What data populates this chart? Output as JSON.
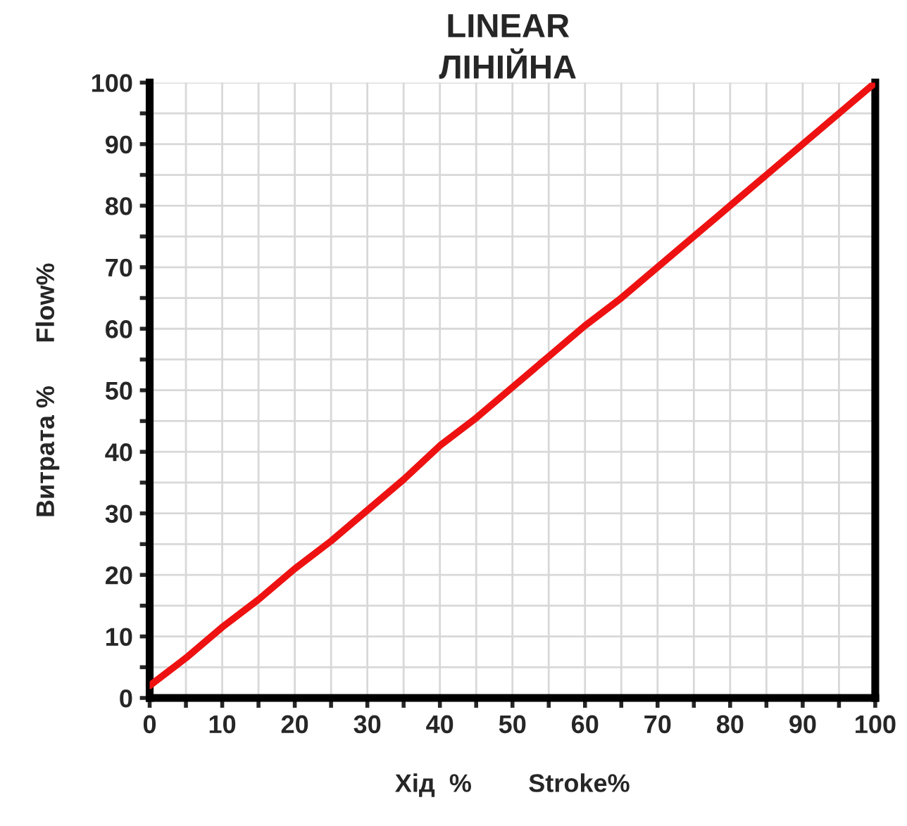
{
  "chart_data": {
    "type": "line",
    "title": "LINEAR",
    "subtitle": "ЛІНІЙНА",
    "xlabel": "Хід  %        Stroke%",
    "ylabel": "Витрата %      Flow%",
    "x": [
      0,
      5,
      10,
      15,
      20,
      25,
      30,
      35,
      40,
      45,
      50,
      55,
      60,
      65,
      70,
      75,
      80,
      85,
      90,
      95,
      100
    ],
    "series": [
      {
        "color": "#ee1111",
        "values": [
          2,
          6.5,
          11.5,
          16,
          21,
          25.5,
          30.5,
          35.5,
          41,
          45.5,
          50.5,
          55.5,
          60.5,
          65,
          70,
          75,
          80,
          85,
          90,
          95,
          100
        ]
      }
    ],
    "xlim": [
      0,
      100
    ],
    "ylim": [
      0,
      100
    ],
    "xticks": [
      0,
      {
        "value": 5,
        "label": null
      },
      10,
      {
        "value": 15,
        "label": null
      },
      20,
      {
        "value": 25,
        "label": null
      },
      30,
      {
        "value": 35,
        "label": null
      },
      40,
      {
        "value": 45,
        "label": null
      },
      50,
      {
        "value": 55,
        "label": null
      },
      60,
      {
        "value": 65,
        "label": null
      },
      70,
      {
        "value": 75,
        "label": null
      },
      80,
      {
        "value": 85,
        "label": null
      },
      90,
      {
        "value": 95,
        "label": null
      },
      100
    ],
    "yticks": [
      0,
      {
        "value": 5,
        "label": null
      },
      10,
      {
        "value": 15,
        "label": null
      },
      20,
      {
        "value": 25,
        "label": null
      },
      30,
      {
        "value": 35,
        "label": null
      },
      40,
      {
        "value": 45,
        "label": null
      },
      50,
      {
        "value": 55,
        "label": null
      },
      60,
      {
        "value": 65,
        "label": null
      },
      70,
      {
        "value": 75,
        "label": null
      },
      80,
      {
        "value": 85,
        "label": null
      },
      90,
      {
        "value": 95,
        "label": null
      },
      100
    ],
    "grid": true,
    "marker": "none",
    "line_style": "solid"
  }
}
